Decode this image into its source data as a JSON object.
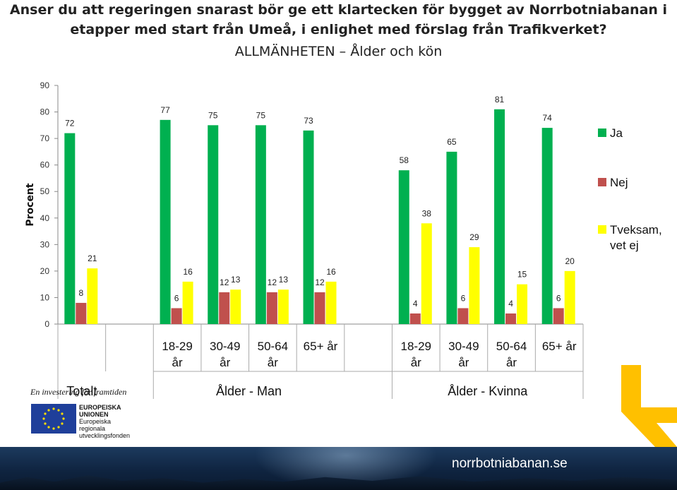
{
  "title": {
    "line1": "Anser du att regeringen snarast bör ge ett klartecken för bygget av Norrbotniabanan i",
    "line2": "etapper med start från Umeå, i enlighet med förslag från Trafikverket?",
    "subtitle": "ALLMÄNHETEN – Ålder och kön"
  },
  "chart_data": {
    "type": "bar",
    "ylabel": "Procent",
    "ylim": [
      0,
      90
    ],
    "yticks": [
      0,
      10,
      20,
      30,
      40,
      50,
      60,
      70,
      80,
      90
    ],
    "grid": false,
    "legend_position": "right",
    "categories": [
      "Totalt",
      "",
      "18-29 år",
      "30-49 år",
      "50-64 år",
      "65+ år",
      "",
      "18-29 år",
      "30-49 år",
      "50-64 år",
      "65+ år"
    ],
    "groups": [
      {
        "label": "Totalt",
        "start": 0,
        "end": 1
      },
      {
        "label": "Ålder  - Man",
        "start": 2,
        "end": 6
      },
      {
        "label": "Ålder  - Kvinna",
        "start": 7,
        "end": 11
      }
    ],
    "series": [
      {
        "name": "Ja",
        "color": "#00b050",
        "values": [
          72,
          null,
          77,
          75,
          75,
          73,
          null,
          58,
          65,
          81,
          74
        ]
      },
      {
        "name": "Nej",
        "color": "#c0504d",
        "values": [
          8,
          null,
          6,
          12,
          12,
          12,
          null,
          4,
          6,
          4,
          6
        ]
      },
      {
        "name": "Tveksam, vet ej",
        "color": "#ffff00",
        "values": [
          21,
          null,
          16,
          13,
          13,
          16,
          null,
          38,
          29,
          15,
          20
        ]
      }
    ]
  },
  "branding": {
    "tagline": "En investering för framtiden",
    "eu_lines": [
      "EUROPEISKA",
      "UNIONEN",
      "Europeiska",
      "regionala",
      "utvecklingsfonden"
    ],
    "website": "norrbotniabanan.se"
  }
}
